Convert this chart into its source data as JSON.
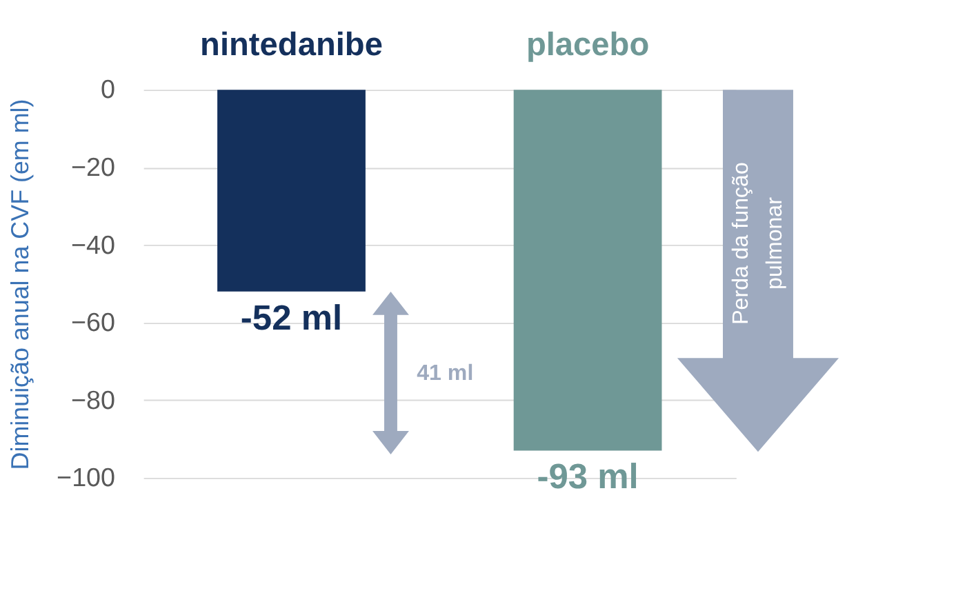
{
  "chart_data": {
    "type": "bar",
    "ylabel": "Diminuição anual na CVF (em ml)",
    "categories": [
      "nintedanibe",
      "placebo"
    ],
    "values": [
      -52,
      -93
    ],
    "colors": [
      "#14305c",
      "#6f9896"
    ],
    "value_labels": [
      "-52 ml",
      "-93 ml"
    ],
    "ylim": [
      -100,
      0
    ],
    "yticks": [
      -100,
      -80,
      -60,
      -40,
      -20,
      0
    ],
    "grid": "y",
    "annotations": [
      "41 ml",
      "Perda da função\npulmonar"
    ]
  }
}
